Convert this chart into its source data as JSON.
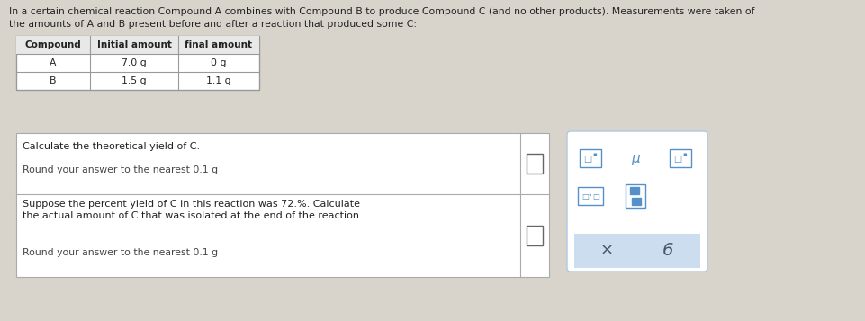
{
  "bg_color": "#d8d4cc",
  "white": "#ffffff",
  "light_blue": "#ccddf0",
  "blue_icon": "#5590c8",
  "text_color": "#222222",
  "gray_text": "#444444",
  "header_text_line1": "In a certain chemical reaction Compound A combines with Compound B to produce Compound C (and no other products). Measurements were taken of",
  "header_text_line2": "the amounts of A and B present before and after a reaction that produced some C:",
  "table_headers": [
    "Compound",
    "Initial amount",
    "final amount"
  ],
  "table_rows": [
    [
      "A",
      "7.0 g",
      "0 g"
    ],
    [
      "B",
      "1.5 g",
      "1.1 g"
    ]
  ],
  "question1_text": "Calculate the theoretical yield of C.",
  "question1_sub": "Round your answer to the nearest 0.1 g",
  "question2_line1": "Suppose the percent yield of C in this reaction was 72.%. Calculate",
  "question2_line2": "the actual amount of C that was isolated at the end of the reaction.",
  "question2_sub": "Round your answer to the nearest 0.1 g",
  "panel_bottom_left": "×",
  "panel_bottom_right": "6"
}
